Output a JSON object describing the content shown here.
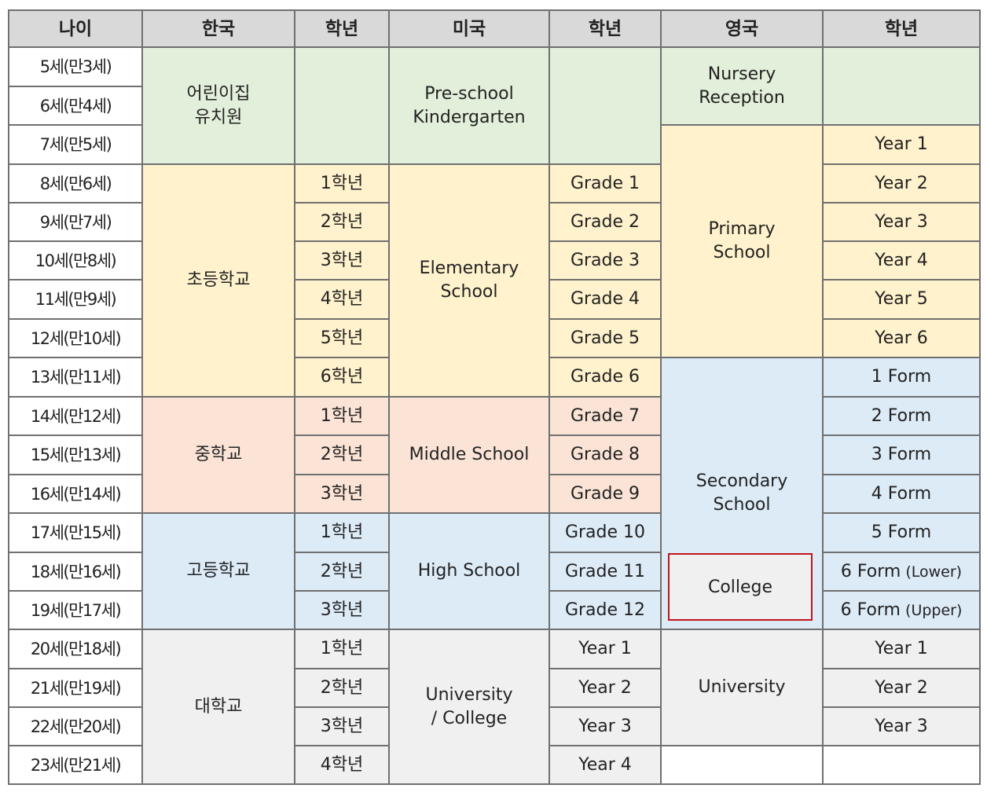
{
  "colors": {
    "header": "#d9d9d9",
    "green": "#e2efda",
    "yellow": "#fff2cc",
    "pink": "#fbe4d6",
    "blue": "#ddebf7",
    "gray": "#f0f0f0",
    "white": "#ffffff",
    "border": "#707070",
    "highlight_border": "#c0151c"
  },
  "headers": [
    "나이",
    "한국",
    "학년",
    "미국",
    "학년",
    "영국",
    "학년"
  ],
  "ages": [
    "5세(만3세)",
    "6세(만4세)",
    "7세(만5세)",
    "8세(만6세)",
    "9세(만7세)",
    "10세(만8세)",
    "11세(만9세)",
    "12세(만10세)",
    "13세(만11세)",
    "14세(만12세)",
    "15세(만13세)",
    "16세(만14세)",
    "17세(만15세)",
    "18세(만16세)",
    "19세(만17세)",
    "20세(만18세)",
    "21세(만19세)",
    "22세(만20세)",
    "23세(만21세)"
  ],
  "korea_schools": [
    {
      "text": "어린이집\n유치원",
      "color": "green",
      "rows": 3
    },
    {
      "text": "초등학교",
      "color": "yellow",
      "rows": 6
    },
    {
      "text": "중학교",
      "color": "pink",
      "rows": 3
    },
    {
      "text": "고등학교",
      "color": "blue",
      "rows": 3
    },
    {
      "text": "대학교",
      "color": "gray",
      "rows": 4
    }
  ],
  "korea_grades": [
    {
      "text": "",
      "color": "green",
      "rows": 3
    },
    {
      "text": "1학년",
      "color": "yellow",
      "rows": 1
    },
    {
      "text": "2학년",
      "color": "yellow",
      "rows": 1
    },
    {
      "text": "3학년",
      "color": "yellow",
      "rows": 1
    },
    {
      "text": "4학년",
      "color": "yellow",
      "rows": 1
    },
    {
      "text": "5학년",
      "color": "yellow",
      "rows": 1
    },
    {
      "text": "6학년",
      "color": "yellow",
      "rows": 1
    },
    {
      "text": "1학년",
      "color": "pink",
      "rows": 1
    },
    {
      "text": "2학년",
      "color": "pink",
      "rows": 1
    },
    {
      "text": "3학년",
      "color": "pink",
      "rows": 1
    },
    {
      "text": "1학년",
      "color": "blue",
      "rows": 1
    },
    {
      "text": "2학년",
      "color": "blue",
      "rows": 1
    },
    {
      "text": "3학년",
      "color": "blue",
      "rows": 1
    },
    {
      "text": "1학년",
      "color": "gray",
      "rows": 1
    },
    {
      "text": "2학년",
      "color": "gray",
      "rows": 1
    },
    {
      "text": "3학년",
      "color": "gray",
      "rows": 1
    },
    {
      "text": "4학년",
      "color": "gray",
      "rows": 1
    }
  ],
  "us_schools": [
    {
      "text": "Pre-school\nKindergarten",
      "color": "green",
      "rows": 3
    },
    {
      "text": "Elementary\nSchool",
      "color": "yellow",
      "rows": 6
    },
    {
      "text": "Middle School",
      "color": "pink",
      "rows": 3
    },
    {
      "text": "High School",
      "color": "blue",
      "rows": 3
    },
    {
      "text": "University\n/ College",
      "color": "gray",
      "rows": 4
    }
  ],
  "us_grades": [
    {
      "text": "",
      "color": "green",
      "rows": 3
    },
    {
      "text": "Grade 1",
      "color": "yellow",
      "rows": 1
    },
    {
      "text": "Grade 2",
      "color": "yellow",
      "rows": 1
    },
    {
      "text": "Grade 3",
      "color": "yellow",
      "rows": 1
    },
    {
      "text": "Grade 4",
      "color": "yellow",
      "rows": 1
    },
    {
      "text": "Grade 5",
      "color": "yellow",
      "rows": 1
    },
    {
      "text": "Grade 6",
      "color": "yellow",
      "rows": 1
    },
    {
      "text": "Grade 7",
      "color": "pink",
      "rows": 1
    },
    {
      "text": "Grade 8",
      "color": "pink",
      "rows": 1
    },
    {
      "text": "Grade 9",
      "color": "pink",
      "rows": 1
    },
    {
      "text": "Grade 10",
      "color": "blue",
      "rows": 1
    },
    {
      "text": "Grade 11",
      "color": "blue",
      "rows": 1
    },
    {
      "text": "Grade 12",
      "color": "blue",
      "rows": 1
    },
    {
      "text": "Year 1",
      "color": "gray",
      "rows": 1
    },
    {
      "text": "Year 2",
      "color": "gray",
      "rows": 1
    },
    {
      "text": "Year 3",
      "color": "gray",
      "rows": 1
    },
    {
      "text": "Year 4",
      "color": "gray",
      "rows": 1
    }
  ],
  "uk_schools": [
    {
      "text": "Nursery\nReception",
      "color": "green",
      "rows": 2
    },
    {
      "text": "Primary\nSchool",
      "color": "yellow",
      "rows": 6
    },
    {
      "text": "Secondary\nSchool",
      "color": "blue",
      "rows": 7
    },
    {
      "text": "University",
      "color": "gray",
      "rows": 3
    },
    {
      "text": "",
      "color": "white",
      "rows": 1
    }
  ],
  "uk_college": "College",
  "uk_grades": [
    {
      "text": "",
      "color": "green",
      "rows": 2
    },
    {
      "text": "Year 1",
      "color": "yellow",
      "rows": 1
    },
    {
      "text": "Year 2",
      "color": "yellow",
      "rows": 1
    },
    {
      "text": "Year 3",
      "color": "yellow",
      "rows": 1
    },
    {
      "text": "Year 4",
      "color": "yellow",
      "rows": 1
    },
    {
      "text": "Year 5",
      "color": "yellow",
      "rows": 1
    },
    {
      "text": "Year 6",
      "color": "yellow",
      "rows": 1
    },
    {
      "text": "1 Form",
      "color": "blue",
      "rows": 1
    },
    {
      "text": "2 Form",
      "color": "blue",
      "rows": 1
    },
    {
      "text": "3 Form",
      "color": "blue",
      "rows": 1
    },
    {
      "text": "4 Form",
      "color": "blue",
      "rows": 1
    },
    {
      "text": "5 Form",
      "color": "blue",
      "rows": 1
    },
    {
      "text": "6 Form",
      "suffix": "(Lower)",
      "color": "blue",
      "rows": 1
    },
    {
      "text": "6 Form",
      "suffix": "(Upper)",
      "color": "blue",
      "rows": 1
    },
    {
      "text": "Year 1",
      "color": "gray",
      "rows": 1
    },
    {
      "text": "Year 2",
      "color": "gray",
      "rows": 1
    },
    {
      "text": "Year 3",
      "color": "gray",
      "rows": 1
    },
    {
      "text": "",
      "color": "white",
      "rows": 1
    }
  ]
}
